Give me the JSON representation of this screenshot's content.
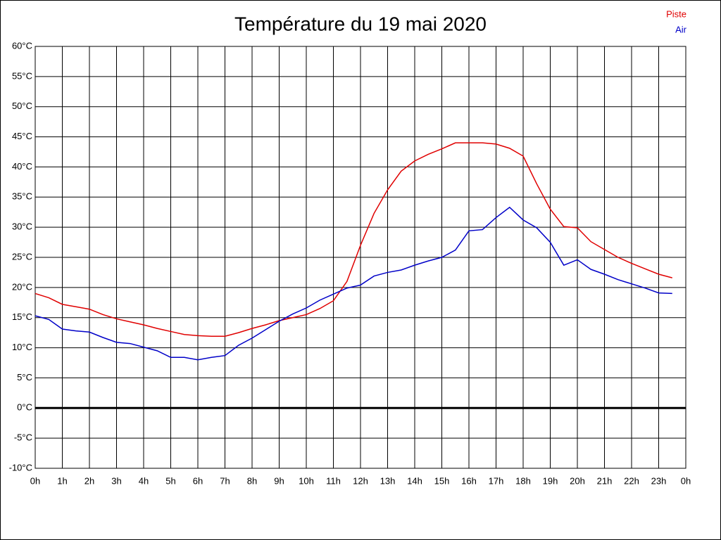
{
  "chart_data": {
    "type": "line",
    "title": "Température du 19 mai 2020",
    "x": [
      0,
      0.5,
      1,
      1.5,
      2,
      2.5,
      3,
      3.5,
      4,
      4.5,
      5,
      5.5,
      6,
      6.5,
      7,
      7.5,
      8,
      8.5,
      9,
      9.5,
      10,
      10.5,
      11,
      11.5,
      12,
      12.5,
      13,
      13.5,
      14,
      14.5,
      15,
      15.5,
      16,
      16.5,
      17,
      17.5,
      18,
      18.5,
      19,
      19.5,
      20,
      20.5,
      21,
      21.5,
      22,
      22.5,
      23,
      23.5
    ],
    "series": [
      {
        "name": "Piste",
        "color": "#e00000",
        "values": [
          19.0,
          18.3,
          17.2,
          16.8,
          16.4,
          15.5,
          14.8,
          14.3,
          13.8,
          13.2,
          12.7,
          12.2,
          12.0,
          11.9,
          11.9,
          12.5,
          13.2,
          13.8,
          14.5,
          15.0,
          15.5,
          16.5,
          17.8,
          21.0,
          27.0,
          32.3,
          36.2,
          39.3,
          41.0,
          42.1,
          43.0,
          44.0,
          44.0,
          44.0,
          43.8,
          43.1,
          41.8,
          37.2,
          33.0,
          30.1,
          29.9,
          27.6,
          26.3,
          25.0,
          24.0,
          23.1,
          22.2,
          21.6
        ]
      },
      {
        "name": "Air",
        "color": "#0000c8",
        "values": [
          15.3,
          14.7,
          13.1,
          12.8,
          12.6,
          11.7,
          10.9,
          10.7,
          10.1,
          9.5,
          8.4,
          8.4,
          8.0,
          8.4,
          8.7,
          10.4,
          11.6,
          13.0,
          14.4,
          15.6,
          16.6,
          17.9,
          18.9,
          19.9,
          20.4,
          21.9,
          22.5,
          22.9,
          23.7,
          24.4,
          25.0,
          26.2,
          29.4,
          29.6,
          31.6,
          33.3,
          31.2,
          29.9,
          27.5,
          23.7,
          24.6,
          23.0,
          22.2,
          21.3,
          20.6,
          19.9,
          19.1,
          19.0
        ]
      }
    ],
    "xlim": [
      0,
      24
    ],
    "xticks": [
      {
        "value": 0,
        "label": "0h"
      },
      {
        "value": 1,
        "label": "1h"
      },
      {
        "value": 2,
        "label": "2h"
      },
      {
        "value": 3,
        "label": "3h"
      },
      {
        "value": 4,
        "label": "4h"
      },
      {
        "value": 5,
        "label": "5h"
      },
      {
        "value": 6,
        "label": "6h"
      },
      {
        "value": 7,
        "label": "7h"
      },
      {
        "value": 8,
        "label": "8h"
      },
      {
        "value": 9,
        "label": "9h"
      },
      {
        "value": 10,
        "label": "10h"
      },
      {
        "value": 11,
        "label": "11h"
      },
      {
        "value": 12,
        "label": "12h"
      },
      {
        "value": 13,
        "label": "13h"
      },
      {
        "value": 14,
        "label": "14h"
      },
      {
        "value": 15,
        "label": "15h"
      },
      {
        "value": 16,
        "label": "16h"
      },
      {
        "value": 17,
        "label": "17h"
      },
      {
        "value": 18,
        "label": "18h"
      },
      {
        "value": 19,
        "label": "19h"
      },
      {
        "value": 20,
        "label": "20h"
      },
      {
        "value": 21,
        "label": "21h"
      },
      {
        "value": 22,
        "label": "22h"
      },
      {
        "value": 23,
        "label": "23h"
      },
      {
        "value": 24,
        "label": "0h"
      }
    ],
    "ylim": [
      -10,
      60
    ],
    "yticks": [
      {
        "value": -10,
        "label": "-10°C"
      },
      {
        "value": -5,
        "label": "-5°C"
      },
      {
        "value": 0,
        "label": "0°C"
      },
      {
        "value": 5,
        "label": "5°C"
      },
      {
        "value": 10,
        "label": "10°C"
      },
      {
        "value": 15,
        "label": "15°C"
      },
      {
        "value": 20,
        "label": "20°C"
      },
      {
        "value": 25,
        "label": "25°C"
      },
      {
        "value": 30,
        "label": "30°C"
      },
      {
        "value": 35,
        "label": "35°C"
      },
      {
        "value": 40,
        "label": "40°C"
      },
      {
        "value": 45,
        "label": "45°C"
      },
      {
        "value": 50,
        "label": "50°C"
      },
      {
        "value": 55,
        "label": "55°C"
      },
      {
        "value": 60,
        "label": "60°C"
      }
    ],
    "grid": true,
    "zero_line": true,
    "legend": "top-right"
  }
}
